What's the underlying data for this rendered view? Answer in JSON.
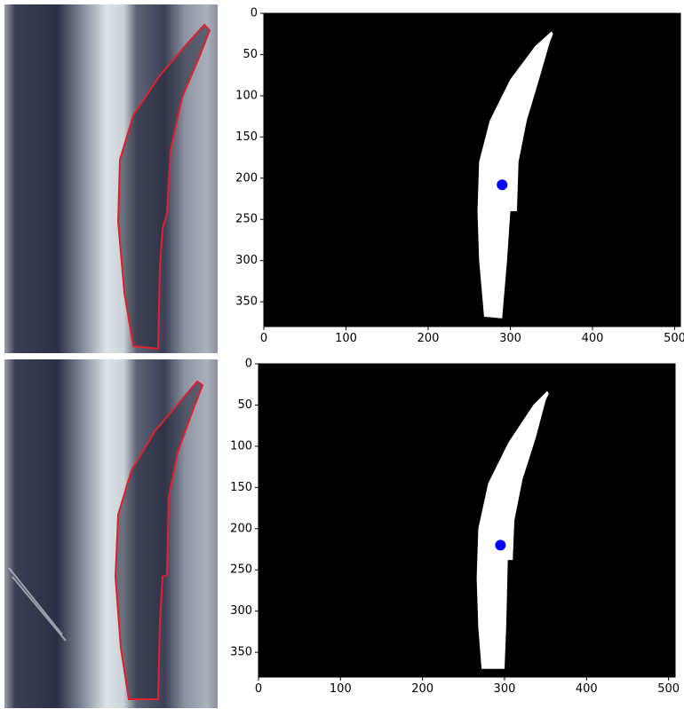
{
  "chart_data": [
    {
      "type": "scatter",
      "x": [
        290
      ],
      "y": [
        208
      ],
      "color": "#0000ff",
      "xlim": [
        0,
        507
      ],
      "ylim": [
        380,
        0
      ],
      "xticks": [
        0,
        100,
        200,
        300,
        400,
        500
      ],
      "yticks": [
        0,
        50,
        100,
        150,
        200,
        250,
        300,
        350
      ]
    },
    {
      "type": "scatter",
      "x": [
        295
      ],
      "y": [
        220
      ],
      "color": "#0000ff",
      "xlim": [
        0,
        508
      ],
      "ylim": [
        380,
        0
      ],
      "xticks": [
        0,
        100,
        200,
        300,
        400,
        500
      ],
      "yticks": [
        0,
        50,
        100,
        150,
        200,
        250,
        300,
        350
      ]
    }
  ]
}
